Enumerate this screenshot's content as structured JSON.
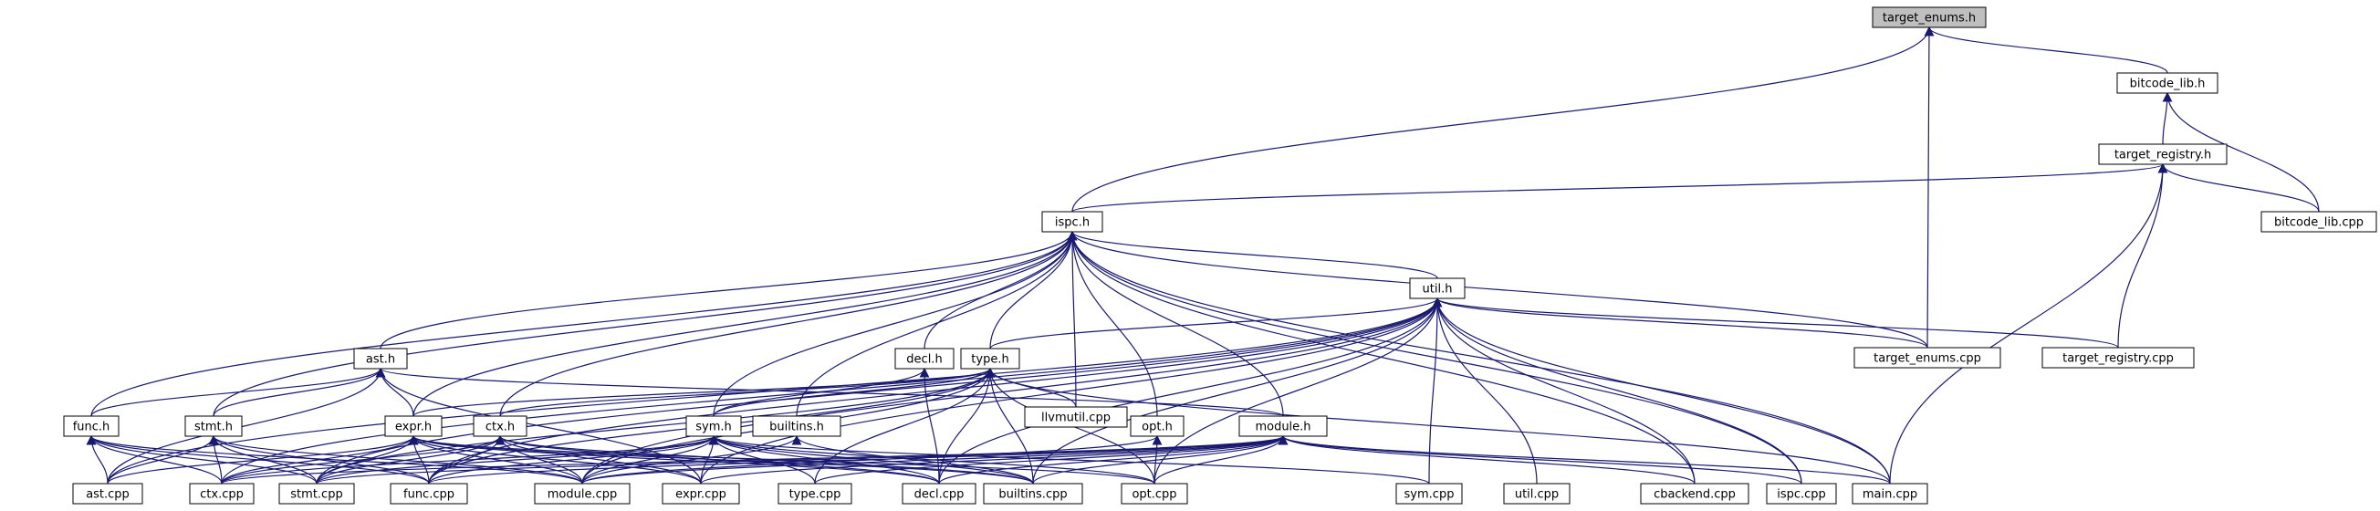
{
  "diagram": {
    "type": "include-dependency-graph",
    "root": "target_enums.h",
    "nodes": [
      "target_enums.h",
      "bitcode_lib.h",
      "target_registry.h",
      "bitcode_lib.cpp",
      "ispc.h",
      "util.h",
      "target_enums.cpp",
      "target_registry.cpp",
      "ast.h",
      "decl.h",
      "type.h",
      "llvmutil.cpp",
      "func.h",
      "stmt.h",
      "expr.h",
      "ctx.h",
      "sym.h",
      "builtins.h",
      "opt.h",
      "module.h",
      "ast.cpp",
      "ctx.cpp",
      "stmt.cpp",
      "func.cpp",
      "module.cpp",
      "expr.cpp",
      "type.cpp",
      "decl.cpp",
      "builtins.cpp",
      "opt.cpp",
      "sym.cpp",
      "util.cpp",
      "cbackend.cpp",
      "ispc.cpp",
      "main.cpp"
    ],
    "edges": [
      [
        "ispc.h",
        "target_enums.h"
      ],
      [
        "bitcode_lib.h",
        "target_enums.h"
      ],
      [
        "target_enums.cpp",
        "target_enums.h"
      ],
      [
        "target_registry.h",
        "bitcode_lib.h"
      ],
      [
        "bitcode_lib.cpp",
        "bitcode_lib.h"
      ],
      [
        "ispc.h",
        "target_registry.h"
      ],
      [
        "bitcode_lib.cpp",
        "target_registry.h"
      ],
      [
        "target_registry.cpp",
        "target_registry.h"
      ],
      [
        "main.cpp",
        "target_registry.h"
      ],
      [
        "util.h",
        "ispc.h"
      ],
      [
        "ast.h",
        "ispc.h"
      ],
      [
        "decl.h",
        "ispc.h"
      ],
      [
        "type.h",
        "ispc.h"
      ],
      [
        "llvmutil.cpp",
        "ispc.h"
      ],
      [
        "func.h",
        "ispc.h"
      ],
      [
        "stmt.h",
        "ispc.h"
      ],
      [
        "expr.h",
        "ispc.h"
      ],
      [
        "ctx.h",
        "ispc.h"
      ],
      [
        "sym.h",
        "ispc.h"
      ],
      [
        "builtins.h",
        "ispc.h"
      ],
      [
        "opt.h",
        "ispc.h"
      ],
      [
        "module.h",
        "ispc.h"
      ],
      [
        "target_enums.cpp",
        "ispc.h"
      ],
      [
        "cbackend.cpp",
        "ispc.h"
      ],
      [
        "ispc.cpp",
        "ispc.h"
      ],
      [
        "main.cpp",
        "ispc.h"
      ],
      [
        "type.h",
        "util.h"
      ],
      [
        "ast.cpp",
        "util.h"
      ],
      [
        "ctx.cpp",
        "util.h"
      ],
      [
        "stmt.cpp",
        "util.h"
      ],
      [
        "func.cpp",
        "util.h"
      ],
      [
        "module.cpp",
        "util.h"
      ],
      [
        "expr.cpp",
        "util.h"
      ],
      [
        "decl.cpp",
        "util.h"
      ],
      [
        "builtins.cpp",
        "util.h"
      ],
      [
        "opt.cpp",
        "util.h"
      ],
      [
        "sym.cpp",
        "util.h"
      ],
      [
        "util.cpp",
        "util.h"
      ],
      [
        "cbackend.cpp",
        "util.h"
      ],
      [
        "ispc.cpp",
        "util.h"
      ],
      [
        "main.cpp",
        "util.h"
      ],
      [
        "target_enums.cpp",
        "util.h"
      ],
      [
        "target_registry.cpp",
        "util.h"
      ],
      [
        "func.h",
        "ast.h"
      ],
      [
        "stmt.h",
        "ast.h"
      ],
      [
        "expr.h",
        "ast.h"
      ],
      [
        "module.h",
        "ast.h"
      ],
      [
        "ast.cpp",
        "ast.h"
      ],
      [
        "expr.cpp",
        "ast.h"
      ],
      [
        "sym.h",
        "decl.h"
      ],
      [
        "decl.cpp",
        "decl.h"
      ],
      [
        "expr.h",
        "type.h"
      ],
      [
        "ctx.h",
        "type.h"
      ],
      [
        "sym.h",
        "type.h"
      ],
      [
        "llvmutil.cpp",
        "type.h"
      ],
      [
        "module.cpp",
        "type.h"
      ],
      [
        "stmt.cpp",
        "type.h"
      ],
      [
        "func.cpp",
        "type.h"
      ],
      [
        "type.cpp",
        "type.h"
      ],
      [
        "decl.cpp",
        "type.h"
      ],
      [
        "builtins.cpp",
        "type.h"
      ],
      [
        "opt.cpp",
        "type.h"
      ],
      [
        "main.cpp",
        "type.h"
      ],
      [
        "ast.cpp",
        "func.h"
      ],
      [
        "ctx.cpp",
        "func.h"
      ],
      [
        "stmt.cpp",
        "func.h"
      ],
      [
        "func.cpp",
        "func.h"
      ],
      [
        "module.cpp",
        "func.h"
      ],
      [
        "ast.cpp",
        "stmt.h"
      ],
      [
        "ctx.cpp",
        "stmt.h"
      ],
      [
        "stmt.cpp",
        "stmt.h"
      ],
      [
        "func.cpp",
        "stmt.h"
      ],
      [
        "module.cpp",
        "stmt.h"
      ],
      [
        "ast.cpp",
        "expr.h"
      ],
      [
        "ctx.cpp",
        "expr.h"
      ],
      [
        "stmt.cpp",
        "expr.h"
      ],
      [
        "func.cpp",
        "expr.h"
      ],
      [
        "module.cpp",
        "expr.h"
      ],
      [
        "expr.cpp",
        "expr.h"
      ],
      [
        "decl.cpp",
        "expr.h"
      ],
      [
        "builtins.cpp",
        "expr.h"
      ],
      [
        "opt.cpp",
        "expr.h"
      ],
      [
        "ctx.cpp",
        "ctx.h"
      ],
      [
        "stmt.cpp",
        "ctx.h"
      ],
      [
        "func.cpp",
        "ctx.h"
      ],
      [
        "module.cpp",
        "ctx.h"
      ],
      [
        "expr.cpp",
        "ctx.h"
      ],
      [
        "decl.cpp",
        "ctx.h"
      ],
      [
        "builtins.cpp",
        "ctx.h"
      ],
      [
        "ctx.cpp",
        "sym.h"
      ],
      [
        "stmt.cpp",
        "sym.h"
      ],
      [
        "func.cpp",
        "sym.h"
      ],
      [
        "module.cpp",
        "sym.h"
      ],
      [
        "expr.cpp",
        "sym.h"
      ],
      [
        "type.cpp",
        "sym.h"
      ],
      [
        "decl.cpp",
        "sym.h"
      ],
      [
        "builtins.cpp",
        "sym.h"
      ],
      [
        "opt.cpp",
        "sym.h"
      ],
      [
        "sym.cpp",
        "sym.h"
      ],
      [
        "module.cpp",
        "builtins.h"
      ],
      [
        "builtins.cpp",
        "builtins.h"
      ],
      [
        "module.cpp",
        "opt.h"
      ],
      [
        "opt.cpp",
        "opt.h"
      ],
      [
        "ctx.cpp",
        "module.h"
      ],
      [
        "stmt.cpp",
        "module.h"
      ],
      [
        "func.cpp",
        "module.h"
      ],
      [
        "module.cpp",
        "module.h"
      ],
      [
        "expr.cpp",
        "module.h"
      ],
      [
        "type.cpp",
        "module.h"
      ],
      [
        "decl.cpp",
        "module.h"
      ],
      [
        "builtins.cpp",
        "module.h"
      ],
      [
        "opt.cpp",
        "module.h"
      ],
      [
        "cbackend.cpp",
        "module.h"
      ],
      [
        "ispc.cpp",
        "module.h"
      ],
      [
        "main.cpp",
        "module.h"
      ]
    ]
  }
}
